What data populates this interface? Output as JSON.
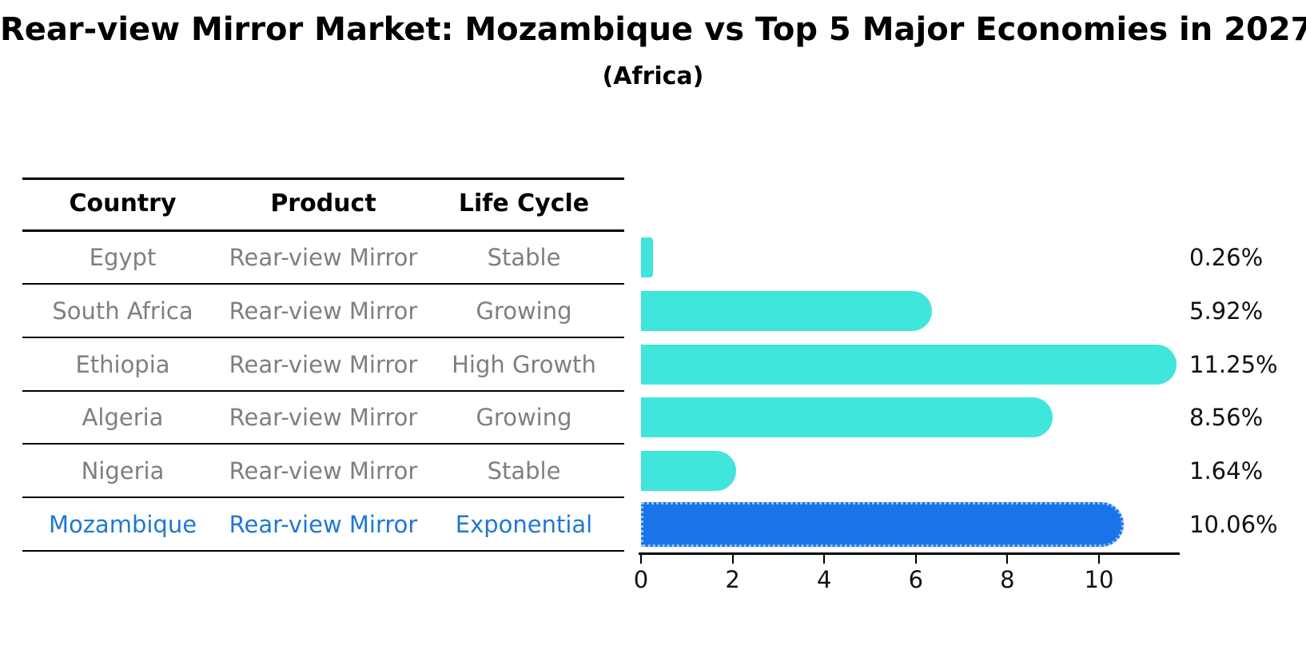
{
  "page": {
    "title": "Rear-view Mirror Market: Mozambique vs Top 5 Major Economies in 2027",
    "subtitle": "(Africa)"
  },
  "table": {
    "columns": [
      "Country",
      "Product",
      "Life Cycle"
    ],
    "rows": [
      {
        "country": "Egypt",
        "product": "Rear-view Mirror",
        "life_cycle": "Stable",
        "highlight": false
      },
      {
        "country": "South Africa",
        "product": "Rear-view Mirror",
        "life_cycle": "Growing",
        "highlight": false
      },
      {
        "country": "Ethiopia",
        "product": "Rear-view Mirror",
        "life_cycle": "High Growth",
        "highlight": false
      },
      {
        "country": "Algeria",
        "product": "Rear-view Mirror",
        "life_cycle": "Growing",
        "highlight": false
      },
      {
        "country": "Nigeria",
        "product": "Rear-view Mirror",
        "life_cycle": "Stable",
        "highlight": false
      },
      {
        "country": "Mozambique",
        "product": "Rear-view Mirror",
        "life_cycle": "Exponential",
        "highlight": true
      }
    ]
  },
  "chart_data": {
    "type": "bar",
    "orientation": "horizontal",
    "title": "Rear-view Mirror Market: Mozambique vs Top 5 Major Economies in 2027",
    "subtitle": "(Africa)",
    "categories": [
      "Egypt",
      "South Africa",
      "Ethiopia",
      "Algeria",
      "Nigeria",
      "Mozambique"
    ],
    "values": [
      0.26,
      5.92,
      11.25,
      8.56,
      1.64,
      10.06
    ],
    "value_labels": [
      "0.26%",
      "5.92%",
      "11.25%",
      "8.56%",
      "1.64%",
      "10.06%"
    ],
    "x_ticks": [
      0,
      2,
      4,
      6,
      8,
      10
    ],
    "xlim": [
      0,
      11.75
    ],
    "xlabel": "",
    "ylabel": "",
    "grid": false,
    "legend": null,
    "bar_color": "#40e5db",
    "highlight_bar_color": "#1a73e8",
    "highlight_index": 5,
    "highlight_edge_style": "dotted",
    "highlight_text_color": "#1f77d4",
    "row_text_color": "#7f7f7f"
  }
}
